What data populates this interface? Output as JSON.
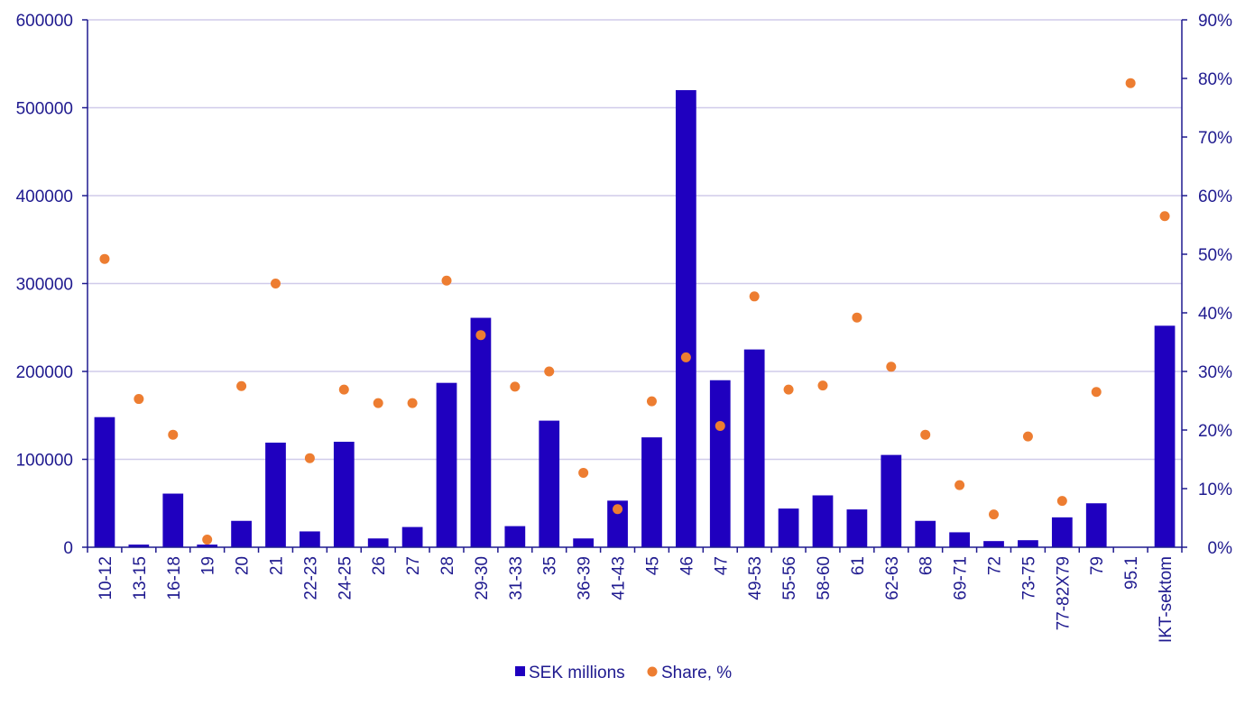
{
  "chart_data": {
    "type": "bar",
    "categories": [
      "10-12",
      "13-15",
      "16-18",
      "19",
      "20",
      "21",
      "22-23",
      "24-25",
      "26",
      "27",
      "28",
      "29-30",
      "31-33",
      "35",
      "36-39",
      "41-43",
      "45",
      "46",
      "47",
      "49-53",
      "55-56",
      "58-60",
      "61",
      "62-63",
      "68",
      "69-71",
      "72",
      "73-75",
      "77-82X79",
      "79",
      "95.1",
      "IKT-sektom"
    ],
    "series": [
      {
        "name": "SEK millions",
        "type": "bar",
        "axis": "left",
        "color": "#1f00bf",
        "values": [
          148000,
          3000,
          61000,
          3000,
          30000,
          119000,
          18000,
          120000,
          10000,
          23000,
          187000,
          261000,
          24000,
          144000,
          10000,
          53000,
          125000,
          520000,
          190000,
          225000,
          44000,
          59000,
          43000,
          105000,
          30000,
          17000,
          7000,
          8000,
          34000,
          50000,
          0,
          252000
        ]
      },
      {
        "name": "Share, %",
        "type": "scatter",
        "axis": "right",
        "color": "#ed7d31",
        "values": [
          49.2,
          25.3,
          19.2,
          1.3,
          27.5,
          45.0,
          15.2,
          26.9,
          24.6,
          24.6,
          45.5,
          36.2,
          27.4,
          30.0,
          12.7,
          6.5,
          24.9,
          32.4,
          20.7,
          42.8,
          26.9,
          27.6,
          39.2,
          30.8,
          19.2,
          10.6,
          5.6,
          18.9,
          7.9,
          26.5,
          79.2,
          56.5
        ]
      }
    ],
    "y_left": {
      "min": 0,
      "max": 600000,
      "ticks": [
        0,
        100000,
        200000,
        300000,
        400000,
        500000,
        600000
      ],
      "tick_labels": [
        "0",
        "100000",
        "200000",
        "300000",
        "400000",
        "500000",
        "600000"
      ]
    },
    "y_right": {
      "min": 0,
      "max": 90,
      "ticks": [
        0,
        10,
        20,
        30,
        40,
        50,
        60,
        70,
        80,
        90
      ],
      "tick_labels": [
        "0%",
        "10%",
        "20%",
        "30%",
        "40%",
        "50%",
        "60%",
        "70%",
        "80%",
        "90%"
      ]
    },
    "grid": true,
    "legend_position": "bottom",
    "legend": [
      {
        "label": "SEK millions",
        "marker": "square",
        "color": "#1f00bf"
      },
      {
        "label": "Share, %",
        "marker": "circle",
        "color": "#ed7d31"
      }
    ],
    "colors": {
      "axis": "#1f1a8f",
      "grid": "#d0cbea",
      "text": "#1f1a8f"
    }
  }
}
